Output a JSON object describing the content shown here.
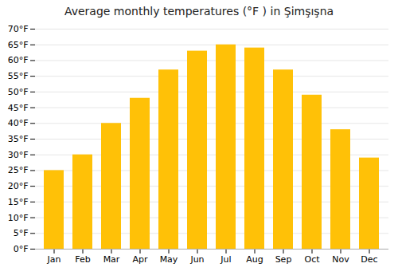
{
  "chart_data": {
    "type": "bar",
    "title": "Average monthly temperatures (°F ) in Şimşışna",
    "categories": [
      "Jan",
      "Feb",
      "Mar",
      "Apr",
      "May",
      "Jun",
      "Jul",
      "Aug",
      "Sep",
      "Oct",
      "Nov",
      "Dec"
    ],
    "values": [
      25,
      30,
      40,
      48,
      57,
      63,
      65,
      64,
      57,
      49,
      38,
      29
    ],
    "color": "#FFC107",
    "ylim": [
      0,
      70
    ],
    "yticks": [
      {
        "value": 0,
        "label": "0°F"
      },
      {
        "value": 5,
        "label": "5°F"
      },
      {
        "value": 10,
        "label": "10°F"
      },
      {
        "value": 15,
        "label": "15°F"
      },
      {
        "value": 20,
        "label": "20°F"
      },
      {
        "value": 25,
        "label": "25°F"
      },
      {
        "value": 30,
        "label": "30°F"
      },
      {
        "value": 35,
        "label": "35°F"
      },
      {
        "value": 40,
        "label": "40°F"
      },
      {
        "value": 45,
        "label": "45°F"
      },
      {
        "value": 50,
        "label": "50°F"
      },
      {
        "value": 55,
        "label": "55°F"
      },
      {
        "value": 60,
        "label": "60°F"
      },
      {
        "value": 65,
        "label": "65°F"
      },
      {
        "value": 70,
        "label": "70°F"
      }
    ],
    "grid": true
  }
}
